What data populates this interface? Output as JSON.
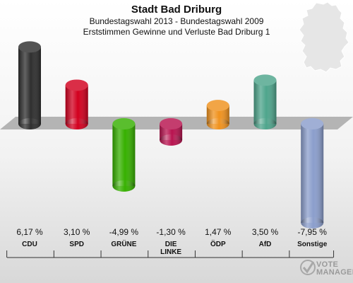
{
  "header": {
    "title": "Stadt Bad Driburg",
    "subtitle1": "Bundestagswahl 2013 - Bundestagswahl 2009",
    "subtitle2": "Erststimmen Gewinne und Verluste Bad Driburg 1"
  },
  "logo": {
    "line1": "VOTE",
    "line2": "MANAGER"
  },
  "chart_data": {
    "type": "bar",
    "title": "Stadt Bad Driburg",
    "subtitle": "Bundestagswahl 2013 - Bundestagswahl 2009 / Erststimmen Gewinne und Verluste Bad Driburg 1",
    "categories": [
      "CDU",
      "SPD",
      "GRÜNE",
      "DIE LINKE",
      "ÖDP",
      "AfD",
      "Sonstige"
    ],
    "values": [
      6.17,
      3.1,
      -4.99,
      -1.3,
      1.47,
      3.5,
      -7.95
    ],
    "value_labels": [
      "6,17 %",
      "3,10 %",
      "-4,99 %",
      "-1,30 %",
      "1,47 %",
      "3,50 %",
      "-7,95 %"
    ],
    "label_lines": [
      [
        "CDU"
      ],
      [
        "SPD"
      ],
      [
        "GRÜNE"
      ],
      [
        "DIE",
        "LINKE"
      ],
      [
        "ÖDP"
      ],
      [
        "AfD"
      ],
      [
        "Sonstige"
      ]
    ],
    "colors": [
      "#2f2f2f",
      "#d2001f",
      "#36b000",
      "#b8134f",
      "#f0921e",
      "#4fa58c",
      "#8b9ecc"
    ],
    "xlabel": "",
    "ylabel": "",
    "ylim": [
      -8,
      6.5
    ],
    "grid": false,
    "legend": "none"
  }
}
